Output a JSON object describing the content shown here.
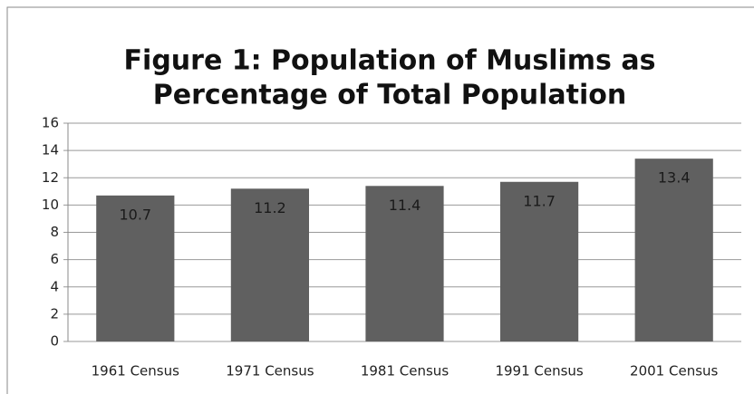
{
  "chart_data": {
    "type": "bar",
    "title": [
      "Figure 1: Population of Muslims as",
      "Percentage of Total Population"
    ],
    "categories": [
      "1961 Census",
      "1971 Census",
      "1981 Census",
      "1991 Census",
      "2001 Census"
    ],
    "values": [
      10.7,
      11.2,
      11.4,
      11.7,
      13.4
    ],
    "color": "#606060",
    "ylim": [
      0,
      16
    ],
    "yticks": [
      0,
      2,
      4,
      6,
      8,
      10,
      12,
      14,
      16
    ],
    "grid": true
  }
}
